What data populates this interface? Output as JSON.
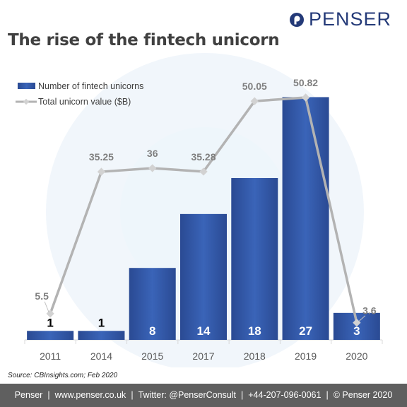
{
  "brand": {
    "name": "PENSER",
    "logo_color": "#243a78"
  },
  "title": "The rise of the fintech unicorn",
  "source": "Source: CBInsights.com; Feb 2020",
  "footer": {
    "items": [
      "Penser",
      "www.penser.co.uk",
      "Twitter: @PenserConsult",
      "+44-207-096-0061",
      "© Penser 2020"
    ],
    "background": "#5f5f5f"
  },
  "chart_data": {
    "type": "bar",
    "categories": [
      "2011",
      "2014",
      "2015",
      "2017",
      "2018",
      "2019",
      "2020"
    ],
    "series": [
      {
        "name": "Number of fintech unicorns",
        "type": "bar",
        "axis": "left",
        "values": [
          1,
          1,
          8,
          14,
          18,
          27,
          3
        ],
        "labels": [
          "1",
          "1",
          "8",
          "14",
          "18",
          "27",
          "3"
        ],
        "color": "#2c4f9e"
      },
      {
        "name": "Total unicorn value ($B)",
        "type": "line",
        "axis": "right",
        "values": [
          5.5,
          35.25,
          36,
          35.28,
          50.05,
          50.82,
          3.6
        ],
        "labels": [
          "5.5",
          "35.25",
          "36",
          "35.28",
          "50.05",
          "50.82",
          "3.6"
        ],
        "color": "#b3b3b3"
      }
    ],
    "ylim": [
      0,
      29
    ],
    "y2lim": [
      0,
      60
    ],
    "grid": false,
    "legend_position": "top-left"
  }
}
